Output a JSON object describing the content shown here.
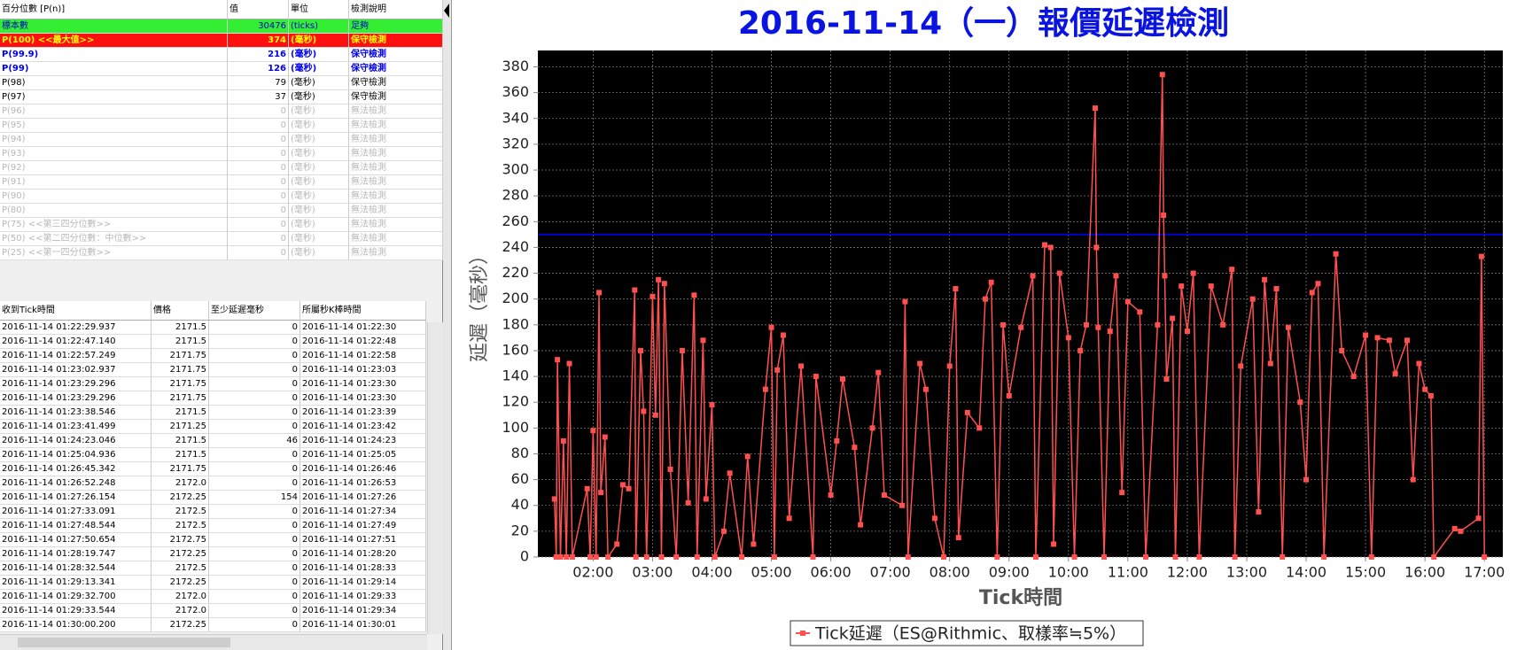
{
  "percentile_table": {
    "header": [
      "百分位數 [P(n)]",
      "值",
      "單位",
      "檢測說明"
    ],
    "rows": [
      [
        "標本數",
        "30476",
        "(ticks)",
        "足夠"
      ],
      [
        "P(100)  <<最大值>>",
        "374",
        "(毫秒)",
        "保守檢測"
      ],
      [
        "P(99.9)",
        "216",
        "(毫秒)",
        "保守檢測"
      ],
      [
        "P(99)",
        "126",
        "(毫秒)",
        "保守檢測"
      ],
      [
        "P(98)",
        "79",
        "(毫秒)",
        "保守檢測"
      ],
      [
        "P(97)",
        "37",
        "(毫秒)",
        "保守檢測"
      ],
      [
        "P(96)",
        "0",
        "(毫秒)",
        "無法檢測"
      ],
      [
        "P(95)",
        "0",
        "(毫秒)",
        "無法檢測"
      ],
      [
        "P(94)",
        "0",
        "(毫秒)",
        "無法檢測"
      ],
      [
        "P(93)",
        "0",
        "(毫秒)",
        "無法檢測"
      ],
      [
        "P(92)",
        "0",
        "(毫秒)",
        "無法檢測"
      ],
      [
        "P(91)",
        "0",
        "(毫秒)",
        "無法檢測"
      ],
      [
        "P(90)",
        "0",
        "(毫秒)",
        "無法檢測"
      ],
      [
        "P(80)",
        "0",
        "(毫秒)",
        "無法檢測"
      ],
      [
        "P(75)  <<第三四分位數>>",
        "0",
        "(毫秒)",
        "無法檢測"
      ],
      [
        "P(50)  <<第二四分位數：中位數>>",
        "0",
        "(毫秒)",
        "無法檢測"
      ],
      [
        "P(25)  <<第一四分位數>>",
        "0",
        "(毫秒)",
        "無法檢測"
      ]
    ]
  },
  "tick_table": {
    "header": [
      "收到Tick時間",
      "價格",
      "至少延遲毫秒",
      "所屬秒K棒時間"
    ],
    "rows": [
      [
        "2016-11-14 01:22:29.937",
        "2171.5",
        "0",
        "2016-11-14 01:22:30"
      ],
      [
        "2016-11-14 01:22:47.140",
        "2171.5",
        "0",
        "2016-11-14 01:22:48"
      ],
      [
        "2016-11-14 01:22:57.249",
        "2171.75",
        "0",
        "2016-11-14 01:22:58"
      ],
      [
        "2016-11-14 01:23:02.937",
        "2171.75",
        "0",
        "2016-11-14 01:23:03"
      ],
      [
        "2016-11-14 01:23:29.296",
        "2171.75",
        "0",
        "2016-11-14 01:23:30"
      ],
      [
        "2016-11-14 01:23:29.296",
        "2171.75",
        "0",
        "2016-11-14 01:23:30"
      ],
      [
        "2016-11-14 01:23:38.546",
        "2171.5",
        "0",
        "2016-11-14 01:23:39"
      ],
      [
        "2016-11-14 01:23:41.499",
        "2171.25",
        "0",
        "2016-11-14 01:23:42"
      ],
      [
        "2016-11-14 01:24:23.046",
        "2171.5",
        "46",
        "2016-11-14 01:24:23"
      ],
      [
        "2016-11-14 01:25:04.936",
        "2171.5",
        "0",
        "2016-11-14 01:25:05"
      ],
      [
        "2016-11-14 01:26:45.342",
        "2171.75",
        "0",
        "2016-11-14 01:26:46"
      ],
      [
        "2016-11-14 01:26:52.248",
        "2172.0",
        "0",
        "2016-11-14 01:26:53"
      ],
      [
        "2016-11-14 01:27:26.154",
        "2172.25",
        "154",
        "2016-11-14 01:27:26"
      ],
      [
        "2016-11-14 01:27:33.091",
        "2172.5",
        "0",
        "2016-11-14 01:27:34"
      ],
      [
        "2016-11-14 01:27:48.544",
        "2172.5",
        "0",
        "2016-11-14 01:27:49"
      ],
      [
        "2016-11-14 01:27:50.654",
        "2172.75",
        "0",
        "2016-11-14 01:27:51"
      ],
      [
        "2016-11-14 01:28:19.747",
        "2172.25",
        "0",
        "2016-11-14 01:28:20"
      ],
      [
        "2016-11-14 01:28:32.544",
        "2172.5",
        "0",
        "2016-11-14 01:28:33"
      ],
      [
        "2016-11-14 01:29:13.341",
        "2172.25",
        "0",
        "2016-11-14 01:29:14"
      ],
      [
        "2016-11-14 01:29:32.700",
        "2172.0",
        "0",
        "2016-11-14 01:29:33"
      ],
      [
        "2016-11-14 01:29:33.544",
        "2172.0",
        "0",
        "2016-11-14 01:29:34"
      ],
      [
        "2016-11-14 01:30:00.200",
        "2172.25",
        "0",
        "2016-11-14 01:30:01"
      ]
    ]
  },
  "chart_data": {
    "type": "line",
    "title": "2016-11-14（一）報價延遲檢測",
    "x_label": "Tick時間",
    "y_label": "延遲（毫秒）",
    "x": [
      1.35,
      1.38,
      1.4,
      1.45,
      1.5,
      1.55,
      1.6,
      1.65,
      1.9,
      1.95,
      2.0,
      2.05,
      2.1,
      2.13,
      2.2,
      2.25,
      2.4,
      2.5,
      2.6,
      2.7,
      2.72,
      2.8,
      2.85,
      2.9,
      3.0,
      3.05,
      3.1,
      3.15,
      3.2,
      3.3,
      3.4,
      3.5,
      3.6,
      3.7,
      3.75,
      3.85,
      3.9,
      4.0,
      4.05,
      4.2,
      4.3,
      4.5,
      4.6,
      4.7,
      4.9,
      5.0,
      5.05,
      5.1,
      5.2,
      5.3,
      5.5,
      5.7,
      5.75,
      6.0,
      6.1,
      6.2,
      6.4,
      6.5,
      6.7,
      6.8,
      6.9,
      7.2,
      7.25,
      7.3,
      7.5,
      7.6,
      7.75,
      7.9,
      8.0,
      8.1,
      8.15,
      8.3,
      8.5,
      8.6,
      8.7,
      8.8,
      8.9,
      9.0,
      9.2,
      9.4,
      9.45,
      9.6,
      9.7,
      9.75,
      9.85,
      10.0,
      10.1,
      10.2,
      10.3,
      10.45,
      10.47,
      10.5,
      10.6,
      10.7,
      10.8,
      10.9,
      11.0,
      11.2,
      11.3,
      11.5,
      11.58,
      11.6,
      11.62,
      11.65,
      11.75,
      11.8,
      11.9,
      12.0,
      12.1,
      12.2,
      12.4,
      12.6,
      12.75,
      12.8,
      12.9,
      13.1,
      13.2,
      13.3,
      13.4,
      13.5,
      13.6,
      13.7,
      13.9,
      14.0,
      14.1,
      14.2,
      14.3,
      14.5,
      14.6,
      14.8,
      15.0,
      15.1,
      15.2,
      15.4,
      15.5,
      15.7,
      15.8,
      15.9,
      16.0,
      16.1,
      16.15,
      16.5,
      16.6,
      16.9,
      16.95,
      17.0
    ],
    "series": [
      {
        "name": "Tick延遲（ES@Rithmic、取樣率≒5%）",
        "color": "#ff5050",
        "values": [
          45,
          0,
          153,
          0,
          90,
          0,
          150,
          0,
          53,
          0,
          98,
          0,
          205,
          50,
          93,
          0,
          10,
          56,
          53,
          207,
          0,
          160,
          113,
          0,
          202,
          110,
          215,
          0,
          212,
          68,
          0,
          160,
          42,
          203,
          0,
          168,
          45,
          118,
          0,
          20,
          65,
          0,
          78,
          10,
          130,
          178,
          0,
          145,
          172,
          30,
          148,
          0,
          140,
          48,
          90,
          138,
          85,
          25,
          100,
          143,
          48,
          40,
          198,
          0,
          150,
          130,
          30,
          0,
          148,
          208,
          15,
          112,
          100,
          200,
          213,
          0,
          180,
          125,
          178,
          218,
          0,
          242,
          240,
          10,
          220,
          170,
          0,
          160,
          180,
          348,
          240,
          178,
          0,
          175,
          218,
          50,
          198,
          190,
          0,
          180,
          374,
          265,
          218,
          138,
          185,
          0,
          210,
          175,
          220,
          0,
          210,
          180,
          223,
          0,
          148,
          200,
          35,
          215,
          150,
          208,
          0,
          178,
          120,
          60,
          205,
          212,
          0,
          235,
          160,
          140,
          172,
          0,
          170,
          168,
          142,
          168,
          60,
          150,
          130,
          125,
          0,
          22,
          20,
          30,
          233,
          0
        ]
      }
    ],
    "hline": {
      "value": 250,
      "color": "#0000cc"
    },
    "xlim": [
      1.07,
      17.31
    ],
    "ylim": [
      0,
      392.7
    ],
    "xticks": [
      {
        "value": 2,
        "label": "02:00"
      },
      {
        "value": 3,
        "label": "03:00"
      },
      {
        "value": 4,
        "label": "04:00"
      },
      {
        "value": 5,
        "label": "05:00"
      },
      {
        "value": 6,
        "label": "06:00"
      },
      {
        "value": 7,
        "label": "07:00"
      },
      {
        "value": 8,
        "label": "08:00"
      },
      {
        "value": 9,
        "label": "09:00"
      },
      {
        "value": 10,
        "label": "10:00"
      },
      {
        "value": 11,
        "label": "11:00"
      },
      {
        "value": 12,
        "label": "12:00"
      },
      {
        "value": 13,
        "label": "13:00"
      },
      {
        "value": 14,
        "label": "14:00"
      },
      {
        "value": 15,
        "label": "15:00"
      },
      {
        "value": 16,
        "label": "16:00"
      },
      {
        "value": 17,
        "label": "17:00"
      }
    ],
    "yticks": [
      0,
      20,
      40,
      60,
      80,
      100,
      120,
      140,
      160,
      180,
      200,
      220,
      240,
      260,
      280,
      300,
      320,
      340,
      360,
      380
    ],
    "grid": true
  }
}
